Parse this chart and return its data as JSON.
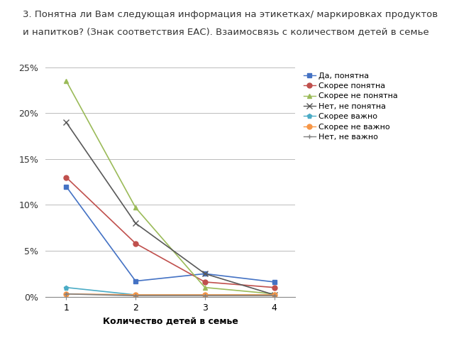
{
  "title_line1": "3. Понятна ли Вам следующая информация на этикетках/ маркировках продуктов",
  "title_line2": "и напитков? (Знак соответствия ЕАС). Взаимосвязь с количеством детей в семье",
  "xlabel": "Количество детей в семье",
  "x": [
    1,
    2,
    3,
    4
  ],
  "series": [
    {
      "label": "Да, понятна",
      "values": [
        0.12,
        0.017,
        0.025,
        0.016
      ],
      "color": "#4472C4",
      "marker": "s",
      "markersize": 5
    },
    {
      "label": "Скорее понятна",
      "values": [
        0.13,
        0.058,
        0.016,
        0.01
      ],
      "color": "#C0504D",
      "marker": "o",
      "markersize": 5
    },
    {
      "label": "Скорее не понятна",
      "values": [
        0.235,
        0.097,
        0.01,
        0.003
      ],
      "color": "#9BBB59",
      "marker": "^",
      "markersize": 5
    },
    {
      "label": "Нет, не понятна",
      "values": [
        0.19,
        0.08,
        0.025,
        0.002
      ],
      "color": "#595959",
      "marker": "x",
      "markersize": 6
    },
    {
      "label": "Скорее важно",
      "values": [
        0.01,
        0.002,
        0.002,
        0.002
      ],
      "color": "#4BACC6",
      "marker": "p",
      "markersize": 5
    },
    {
      "label": "Скорее не важно",
      "values": [
        0.003,
        0.002,
        0.002,
        0.002
      ],
      "color": "#F79646",
      "marker": "o",
      "markersize": 5
    },
    {
      "label": "Нет, не важно",
      "values": [
        0.003,
        0.001,
        0.001,
        0.001
      ],
      "color": "#808080",
      "marker": "+",
      "markersize": 5
    }
  ],
  "ylim": [
    0,
    0.26
  ],
  "yticks": [
    0,
    0.05,
    0.1,
    0.15,
    0.2,
    0.25
  ],
  "ytick_labels": [
    "0%",
    "5%",
    "10%",
    "15%",
    "20%",
    "25%"
  ],
  "xticks": [
    1,
    2,
    3,
    4
  ],
  "background_color": "#FFFFFF",
  "grid_color": "#BBBBBB",
  "title_fontsize": 9.5,
  "axis_label_fontsize": 9,
  "tick_fontsize": 9,
  "legend_fontsize": 8
}
